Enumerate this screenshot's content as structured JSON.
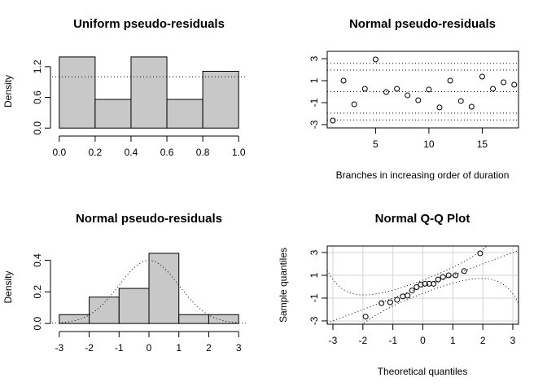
{
  "chart_data": [
    {
      "type": "histogram",
      "title": "Uniform pseudo-residuals",
      "ylabel": "Density",
      "bins": [
        0,
        0.2,
        0.4,
        0.6,
        0.8,
        1
      ],
      "values": [
        1.39,
        0.56,
        1.39,
        0.56,
        1.11
      ],
      "color": "#c8c8c8",
      "reference_line": 1,
      "xlim": [
        -0.04,
        1.04
      ],
      "ylim": [
        -0.06,
        1.5
      ],
      "xticks": [
        {
          "value": 0,
          "label": "0.0"
        },
        0.2,
        0.4,
        0.6,
        0.8,
        {
          "value": 1,
          "label": "1.0"
        }
      ],
      "yticks": [
        {
          "value": 0,
          "label": "0.0"
        },
        0.6,
        1.2
      ]
    },
    {
      "type": "scatter",
      "title": "Normal pseudo-residuals",
      "xlabel": "Branches in increasing order of duration",
      "x": [
        1,
        2,
        3,
        4,
        5,
        6,
        7,
        8,
        9,
        10,
        11,
        12,
        13,
        14,
        15,
        16,
        17,
        18
      ],
      "values": [
        -2.63,
        1.0,
        -1.15,
        0.26,
        2.93,
        -0.04,
        0.26,
        -0.33,
        -0.78,
        0.19,
        -1.44,
        1.0,
        -0.85,
        -1.37,
        1.37,
        0.26,
        0.85,
        0.63
      ],
      "reference_lines": [
        2.58,
        1.96,
        0,
        -1.96,
        -2.58
      ],
      "xlim": [
        0.47,
        18.4
      ],
      "ylim": [
        -3.3,
        3.67
      ],
      "xticks": [
        5,
        10,
        15
      ],
      "yticks": [
        -3,
        -1,
        1,
        3
      ]
    },
    {
      "type": "histogram",
      "title": "Normal pseudo-residuals",
      "ylabel": "Density",
      "bins": [
        -3,
        -2,
        -1,
        0,
        1,
        2,
        3
      ],
      "values": [
        0.056,
        0.167,
        0.222,
        0.444,
        0.056,
        0.056
      ],
      "color": "#c8c8c8",
      "normal_curve": true,
      "xlim": [
        -3.24,
        3.24
      ],
      "ylim": [
        -0.02,
        0.48
      ],
      "xticks": [
        -3,
        -2,
        -1,
        0,
        1,
        2,
        3
      ],
      "yticks": [
        {
          "value": 0,
          "label": "0.0"
        },
        0.2,
        0.4
      ]
    },
    {
      "type": "qq",
      "title": "Normal Q-Q Plot",
      "xlabel": "Theoretical quantiles",
      "ylabel": "Sample quantiles",
      "x": [
        -1.91,
        -1.38,
        -1.09,
        -0.86,
        -0.67,
        -0.51,
        -0.36,
        -0.21,
        -0.07,
        0.07,
        0.21,
        0.36,
        0.51,
        0.67,
        0.86,
        1.09,
        1.38,
        1.91
      ],
      "values": [
        -2.63,
        -1.44,
        -1.37,
        -1.15,
        -0.85,
        -0.78,
        -0.33,
        -0.04,
        0.19,
        0.26,
        0.26,
        0.26,
        0.63,
        0.85,
        1.0,
        1.0,
        1.37,
        2.93
      ],
      "grid": true,
      "xlim": [
        -3.19,
        3.19
      ],
      "ylim": [
        -3.29,
        3.57
      ],
      "xticks": [
        -3,
        -2,
        -1,
        0,
        1,
        2,
        3
      ],
      "yticks": [
        -3,
        -1,
        1,
        3
      ]
    }
  ]
}
